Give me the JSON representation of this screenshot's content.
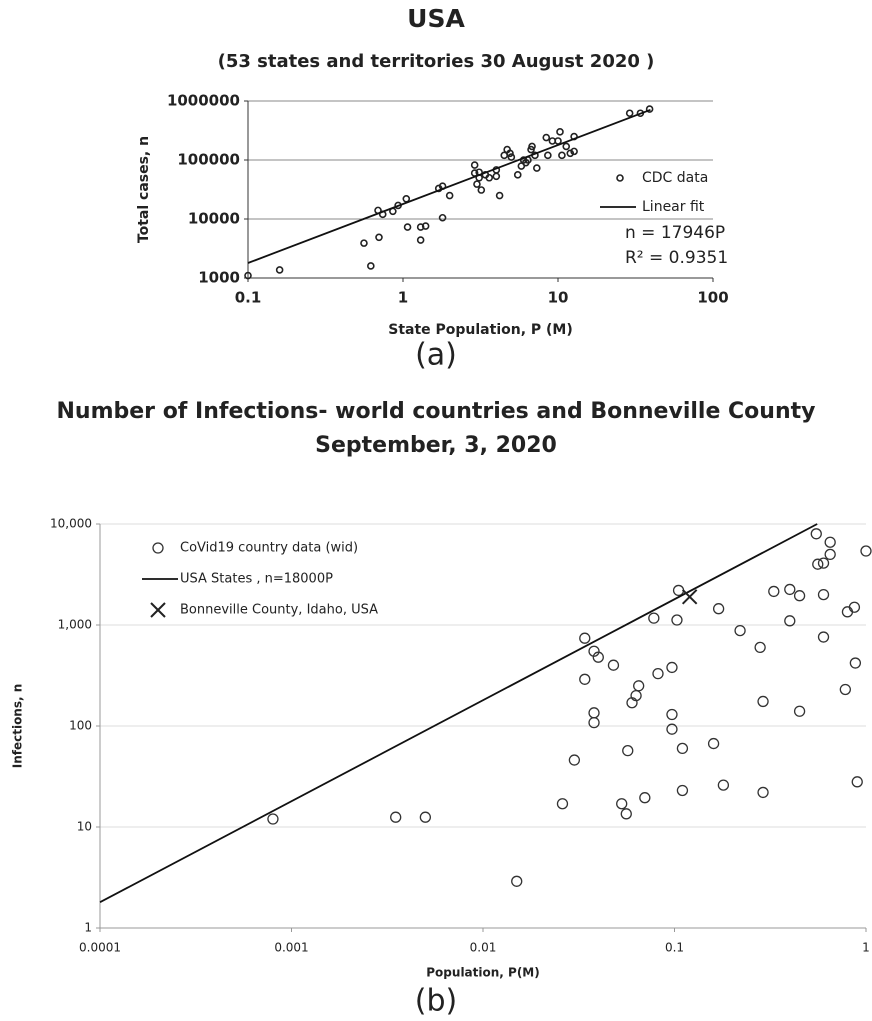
{
  "chart_data": [
    {
      "type": "scatter",
      "title": "USA",
      "subtitle": "(53 states and territories 30 August 2020 )",
      "x_label": "State Population, P (M)",
      "y_label": "Total cases, n",
      "caption": "(a)",
      "log_x": true,
      "log_y": true,
      "grid": true,
      "legend": "right",
      "xlim": [
        0.1,
        100
      ],
      "ylim": [
        1000,
        1000000
      ],
      "xticks": [
        0.1,
        1,
        10,
        100
      ],
      "yticks": [
        1000,
        10000,
        100000,
        1000000
      ],
      "annotations": [
        "n = 17946P",
        "R² = 0.9351"
      ],
      "series": [
        {
          "name": "CDC data",
          "mode": "markers",
          "marker": "circle",
          "color": "#222222",
          "x": [
            0.1,
            0.16,
            0.56,
            0.62,
            0.69,
            0.7,
            0.74,
            0.86,
            0.93,
            1.05,
            1.07,
            1.3,
            1.3,
            1.4,
            1.7,
            1.8,
            1.8,
            2.0,
            2.9,
            2.9,
            3.0,
            3.1,
            3.1,
            3.2,
            3.4,
            3.6,
            4.0,
            4.0,
            4.2,
            4.5,
            4.7,
            5.0,
            4.9,
            5.5,
            5.8,
            6.0,
            6.2,
            6.4,
            6.7,
            6.8,
            7.1,
            7.3,
            8.4,
            8.6,
            9.2,
            10,
            10.3,
            10.6,
            11.3,
            12.0,
            12.7,
            12.7,
            29,
            34,
            39
          ],
          "values": [
            1100,
            1370,
            3900,
            1600,
            14000,
            4900,
            12000,
            13500,
            17000,
            22000,
            7300,
            7300,
            4400,
            7600,
            33000,
            36000,
            10500,
            25000,
            82000,
            60000,
            39000,
            50000,
            62000,
            31000,
            56000,
            50000,
            53000,
            68000,
            25000,
            120000,
            150000,
            112000,
            130000,
            56000,
            79000,
            100000,
            90000,
            100000,
            150000,
            170000,
            120000,
            73000,
            240000,
            120000,
            210000,
            210000,
            300000,
            120000,
            170000,
            130000,
            250000,
            140000,
            620000,
            620000,
            730000
          ]
        },
        {
          "name": "Linear fit",
          "mode": "line",
          "color": "#111111",
          "x": [
            0.1,
            39.5
          ],
          "values": [
            1795,
            708900
          ]
        }
      ]
    },
    {
      "type": "scatter",
      "title": "Number of Infections- world countries and Bonneville County",
      "subtitle": "September, 3, 2020",
      "x_label": "Population, P(M)",
      "y_label": "Infections, n",
      "caption": "(b)",
      "log_x": true,
      "log_y": true,
      "grid": true,
      "legend": "upper left",
      "xlim": [
        0.0001,
        1
      ],
      "ylim": [
        1,
        10000
      ],
      "xticks": [
        0.0001,
        0.001,
        0.01,
        0.1,
        1
      ],
      "yticks": [
        1,
        10,
        100,
        {
          "value": 1000,
          "label": "1,000"
        },
        {
          "value": 10000,
          "label": "10,000"
        }
      ],
      "series": [
        {
          "name": "CoVid19 country data (wid)",
          "mode": "markers",
          "marker": "circle",
          "color": "#333333",
          "x": [
            0.0008,
            0.0035,
            0.005,
            0.015,
            0.026,
            0.03,
            0.034,
            0.034,
            0.038,
            0.04,
            0.048,
            0.038,
            0.038,
            0.057,
            0.053,
            0.056,
            0.06,
            0.063,
            0.065,
            0.07,
            0.078,
            0.082,
            0.097,
            0.097,
            0.097,
            0.103,
            0.105,
            0.11,
            0.11,
            0.16,
            0.17,
            0.18,
            0.22,
            0.28,
            0.29,
            0.29,
            0.33,
            0.4,
            0.4,
            0.45,
            0.45,
            0.55,
            0.56,
            0.6,
            0.6,
            0.6,
            0.65,
            0.65,
            0.78,
            0.8,
            0.87,
            0.88,
            0.9,
            1.0
          ],
          "values": [
            12,
            12.5,
            12.5,
            2.9,
            17,
            46,
            740,
            290,
            550,
            480,
            400,
            135,
            108,
            57,
            17,
            13.5,
            170,
            200,
            250,
            19.5,
            1170,
            330,
            380,
            130,
            93,
            1120,
            2200,
            60,
            23,
            67,
            1450,
            26,
            880,
            600,
            175,
            22,
            2150,
            2250,
            1100,
            1950,
            140,
            8000,
            4000,
            4100,
            2000,
            760,
            6600,
            5000,
            230,
            1350,
            1500,
            420,
            28,
            5400
          ]
        },
        {
          "name": "USA States , n=18000P",
          "mode": "line",
          "color": "#111111",
          "x": [
            0.0001,
            0.556
          ],
          "values": [
            1.8,
            10000
          ]
        },
        {
          "name": "Bonneville County, Idaho, USA",
          "mode": "markers",
          "marker": "x",
          "color": "#222222",
          "x": [
            0.12
          ],
          "values": [
            1900
          ]
        }
      ]
    }
  ]
}
